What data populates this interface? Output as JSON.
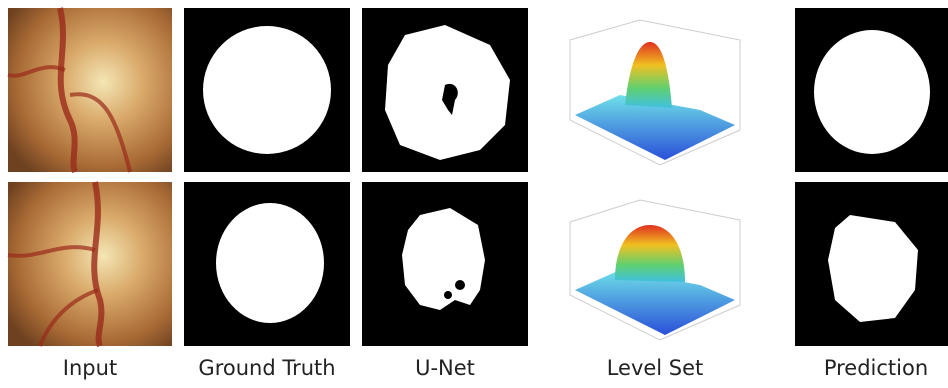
{
  "columns": [
    "Input",
    "Ground Truth",
    "U-Net",
    "Level Set",
    "Prediction"
  ]
}
